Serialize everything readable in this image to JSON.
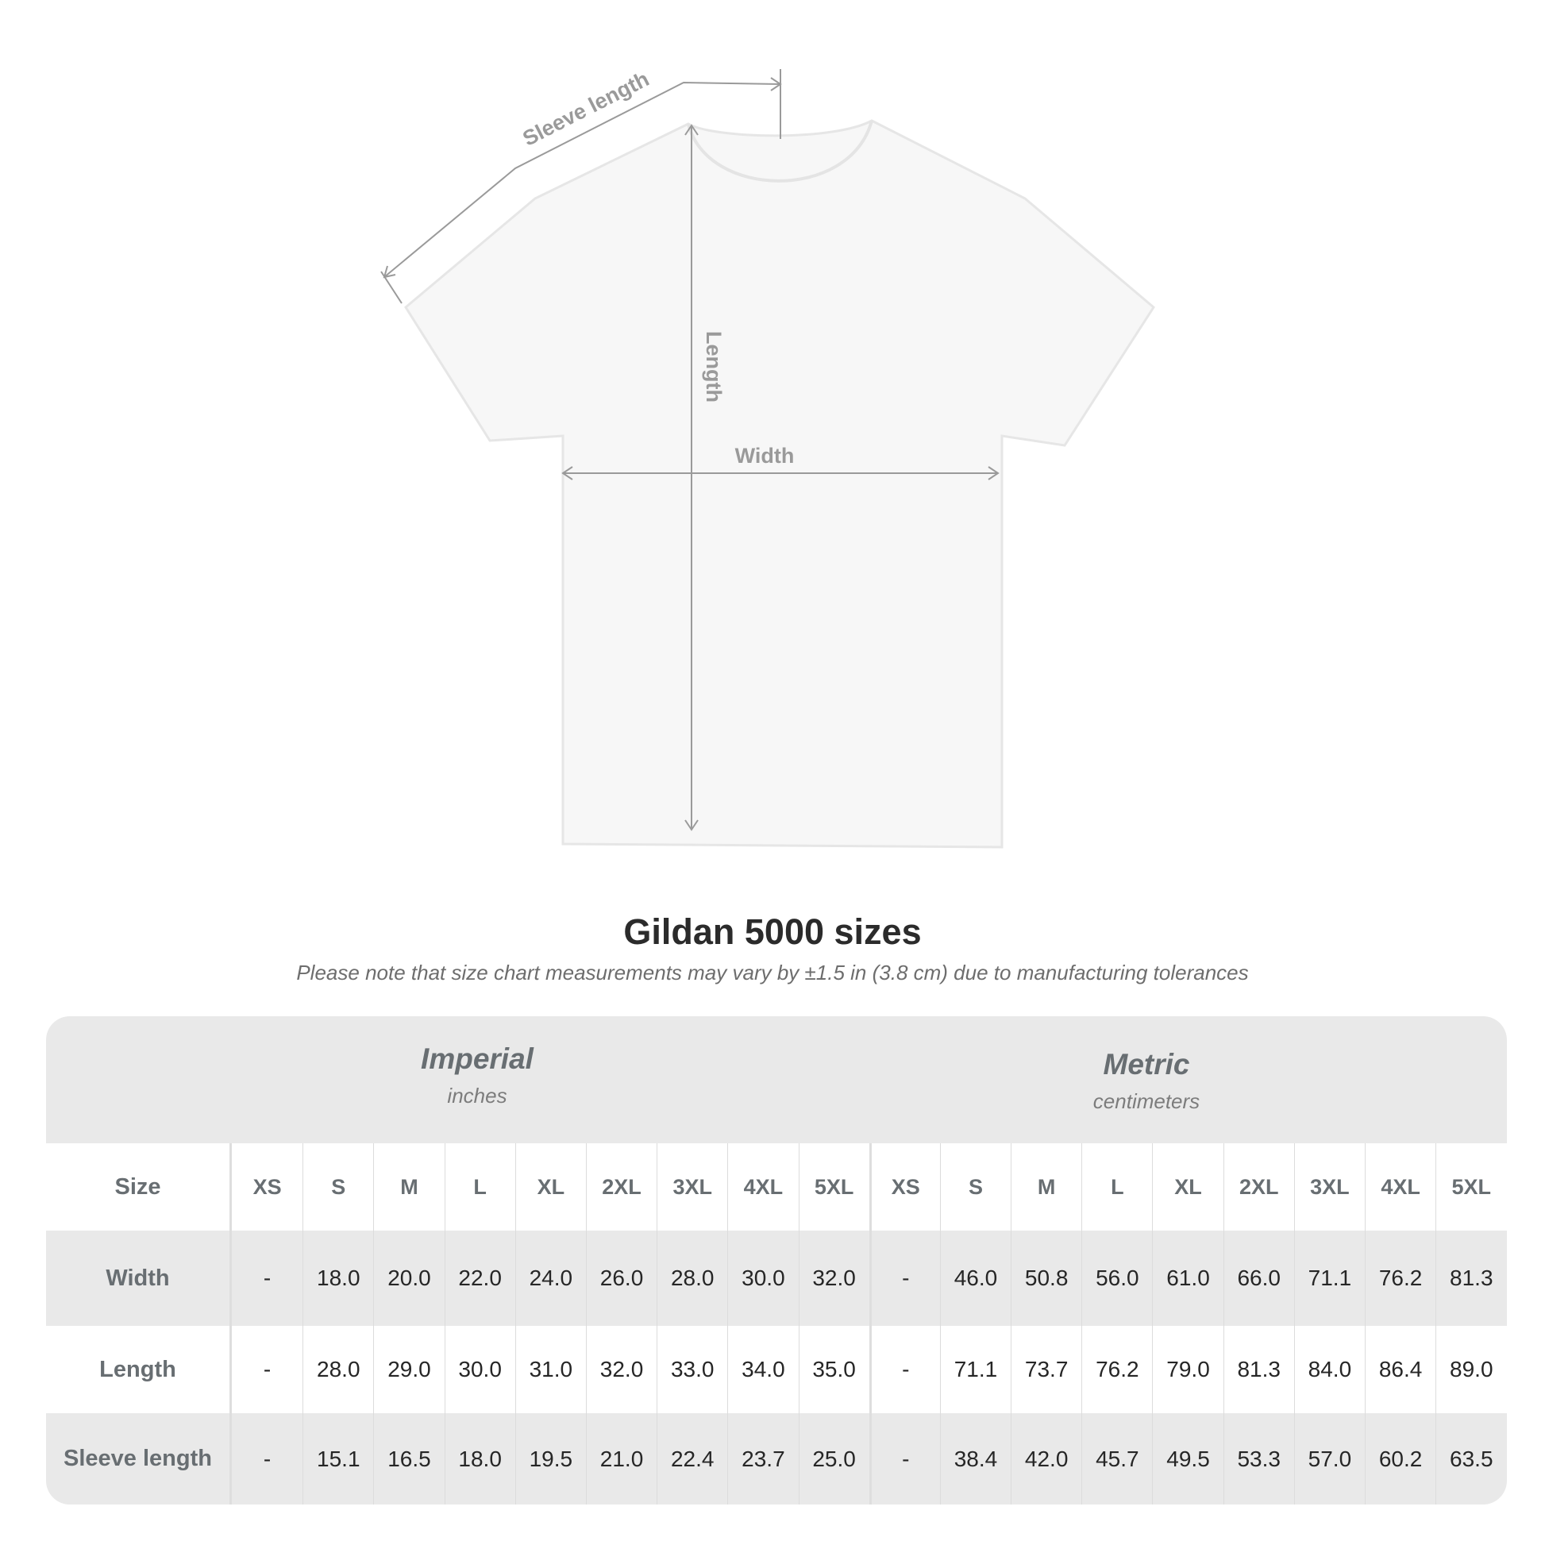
{
  "diagram": {
    "labels": {
      "sleeve": "Sleeve length",
      "length": "Length",
      "width": "Width"
    },
    "colors": {
      "shirt": "#f7f7f7",
      "measure_line": "#9a9a9a"
    }
  },
  "title": "Gildan 5000 sizes",
  "subtitle": "Please note that size chart measurements may vary by ±1.5 in (3.8 cm) due to manufacturing tolerances",
  "table": {
    "imperial": {
      "name": "Imperial",
      "unit": "inches"
    },
    "metric": {
      "name": "Metric",
      "unit": "centimeters"
    },
    "size_label": "Size",
    "sizes": [
      "XS",
      "S",
      "M",
      "L",
      "XL",
      "2XL",
      "3XL",
      "4XL",
      "5XL"
    ],
    "rows": [
      {
        "label": "Width",
        "imperial": [
          "-",
          "18.0",
          "20.0",
          "22.0",
          "24.0",
          "26.0",
          "28.0",
          "30.0",
          "32.0"
        ],
        "metric": [
          "-",
          "46.0",
          "50.8",
          "56.0",
          "61.0",
          "66.0",
          "71.1",
          "76.2",
          "81.3"
        ]
      },
      {
        "label": "Length",
        "imperial": [
          "-",
          "28.0",
          "29.0",
          "30.0",
          "31.0",
          "32.0",
          "33.0",
          "34.0",
          "35.0"
        ],
        "metric": [
          "-",
          "71.1",
          "73.7",
          "76.2",
          "79.0",
          "81.3",
          "84.0",
          "86.4",
          "89.0"
        ]
      },
      {
        "label": "Sleeve length",
        "imperial": [
          "-",
          "15.1",
          "16.5",
          "18.0",
          "19.5",
          "21.0",
          "22.4",
          "23.7",
          "25.0"
        ],
        "metric": [
          "-",
          "38.4",
          "42.0",
          "45.7",
          "49.5",
          "53.3",
          "57.0",
          "60.2",
          "63.5"
        ]
      }
    ]
  }
}
